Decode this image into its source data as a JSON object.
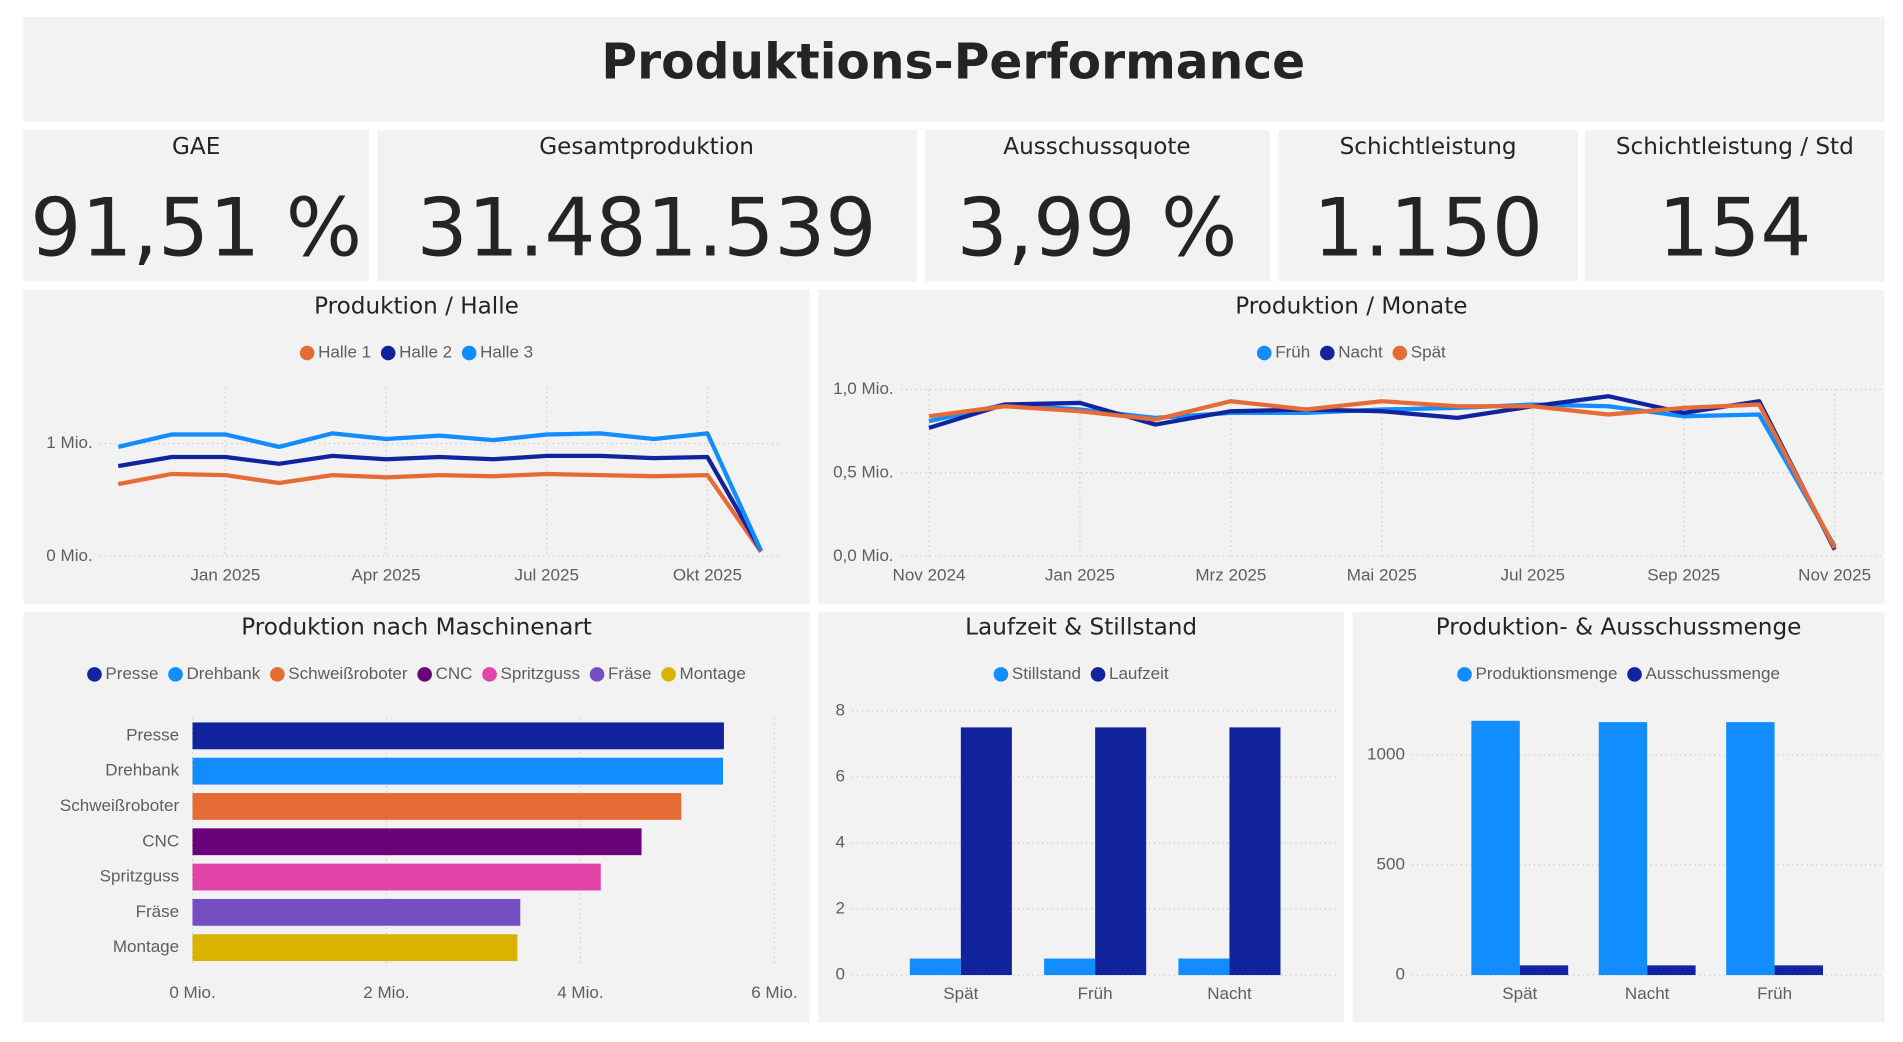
{
  "title": "Produktions-Performance",
  "kpis": [
    {
      "label": "GAE",
      "value": "91,51 %"
    },
    {
      "label": "Gesamtproduktion",
      "value": "31.481.539"
    },
    {
      "label": "Ausschussquote",
      "value": "3,99 %"
    },
    {
      "label": "Schichtleistung",
      "value": "1.150"
    },
    {
      "label": "Schichtleistung / Std",
      "value": "154"
    }
  ],
  "chart_data": [
    {
      "type": "line",
      "title": "Produktion / Halle",
      "x": [
        "2024-11",
        "2024-12",
        "2025-01",
        "2025-02",
        "2025-03",
        "2025-04",
        "2025-05",
        "2025-06",
        "2025-07",
        "2025-08",
        "2025-09",
        "2025-10",
        "2025-11"
      ],
      "xticks": [
        {
          "value": "2025-01",
          "label": "Jan 2025"
        },
        {
          "value": "2025-04",
          "label": "Apr 2025"
        },
        {
          "value": "2025-07",
          "label": "Jul 2025"
        },
        {
          "value": "2025-10",
          "label": "Okt 2025"
        }
      ],
      "ylim": [
        0,
        1.5
      ],
      "yticks": [
        {
          "value": 0,
          "label": "0 Mio."
        },
        {
          "value": 1,
          "label": "1 Mio."
        }
      ],
      "grid": true,
      "series": [
        {
          "name": "Halle 1",
          "color": "#e66c37",
          "values": [
            0.64,
            0.73,
            0.72,
            0.65,
            0.72,
            0.7,
            0.72,
            0.71,
            0.73,
            0.72,
            0.71,
            0.72,
            0.04
          ]
        },
        {
          "name": "Halle 2",
          "color": "#12239e",
          "values": [
            0.8,
            0.88,
            0.88,
            0.82,
            0.89,
            0.86,
            0.88,
            0.86,
            0.89,
            0.89,
            0.87,
            0.88,
            0.05
          ]
        },
        {
          "name": "Halle 3",
          "color": "#118dff",
          "values": [
            0.97,
            1.08,
            1.08,
            0.97,
            1.09,
            1.04,
            1.07,
            1.03,
            1.08,
            1.09,
            1.04,
            1.09,
            0.05
          ]
        }
      ]
    },
    {
      "type": "line",
      "title": "Produktion / Monate",
      "x": [
        "2024-11",
        "2024-12",
        "2025-01",
        "2025-02",
        "2025-03",
        "2025-04",
        "2025-05",
        "2025-06",
        "2025-07",
        "2025-08",
        "2025-09",
        "2025-10",
        "2025-11"
      ],
      "xticks": [
        {
          "value": "2024-11",
          "label": "Nov 2024"
        },
        {
          "value": "2025-01",
          "label": "Jan 2025"
        },
        {
          "value": "2025-03",
          "label": "Mrz 2025"
        },
        {
          "value": "2025-05",
          "label": "Mai 2025"
        },
        {
          "value": "2025-07",
          "label": "Jul 2025"
        },
        {
          "value": "2025-09",
          "label": "Sep 2025"
        },
        {
          "value": "2025-11",
          "label": "Nov 2025"
        }
      ],
      "ylim": [
        0,
        1.0
      ],
      "yticks": [
        {
          "value": 0,
          "label": "0,0 Mio."
        },
        {
          "value": 0.5,
          "label": "0,5 Mio."
        },
        {
          "value": 1.0,
          "label": "1,0 Mio."
        }
      ],
      "grid": true,
      "series": [
        {
          "name": "Früh",
          "color": "#118dff",
          "values": [
            0.81,
            0.91,
            0.88,
            0.83,
            0.86,
            0.86,
            0.88,
            0.89,
            0.91,
            0.9,
            0.84,
            0.85,
            0.06
          ]
        },
        {
          "name": "Nacht",
          "color": "#12239e",
          "values": [
            0.77,
            0.91,
            0.92,
            0.79,
            0.87,
            0.88,
            0.87,
            0.83,
            0.9,
            0.96,
            0.86,
            0.93,
            0.04
          ]
        },
        {
          "name": "Spät",
          "color": "#e66c37",
          "values": [
            0.84,
            0.9,
            0.87,
            0.82,
            0.93,
            0.88,
            0.93,
            0.9,
            0.9,
            0.85,
            0.89,
            0.91,
            0.05
          ]
        }
      ]
    },
    {
      "type": "barh",
      "title": "Produktion nach Maschinenart",
      "categories": [
        "Presse",
        "Drehbank",
        "Schweißroboter",
        "CNC",
        "Spritzguss",
        "Fräse",
        "Montage"
      ],
      "values": [
        5.48,
        5.47,
        5.04,
        4.63,
        4.21,
        3.38,
        3.35
      ],
      "colors": [
        "#12239e",
        "#118dff",
        "#e66c37",
        "#6b007b",
        "#e044a7",
        "#744ec2",
        "#d9b300"
      ],
      "xlim": [
        0,
        6
      ],
      "xticks": [
        {
          "value": 0,
          "label": "0 Mio."
        },
        {
          "value": 2,
          "label": "2 Mio."
        },
        {
          "value": 4,
          "label": "4 Mio."
        },
        {
          "value": 6,
          "label": "6 Mio."
        }
      ],
      "grid": true
    },
    {
      "type": "bar",
      "title": "Laufzeit & Stillstand",
      "categories": [
        "Spät",
        "Früh",
        "Nacht"
      ],
      "ylim": [
        0,
        8
      ],
      "yticks": [
        0,
        2,
        4,
        6,
        8
      ],
      "grid": true,
      "series": [
        {
          "name": "Stillstand",
          "color": "#118dff",
          "values": [
            0.5,
            0.5,
            0.5
          ]
        },
        {
          "name": "Laufzeit",
          "color": "#12239e",
          "values": [
            7.5,
            7.5,
            7.5
          ]
        }
      ]
    },
    {
      "type": "bar",
      "title": "Produktion- & Ausschussmenge",
      "categories": [
        "Spät",
        "Nacht",
        "Früh"
      ],
      "ylim": [
        0,
        1200
      ],
      "yticks": [
        0,
        500,
        1000
      ],
      "grid": true,
      "series": [
        {
          "name": "Produktionsmenge",
          "color": "#118dff",
          "values": [
            1155,
            1149,
            1149
          ]
        },
        {
          "name": "Ausschussmenge",
          "color": "#12239e",
          "values": [
            44,
            44,
            44
          ]
        }
      ]
    }
  ]
}
